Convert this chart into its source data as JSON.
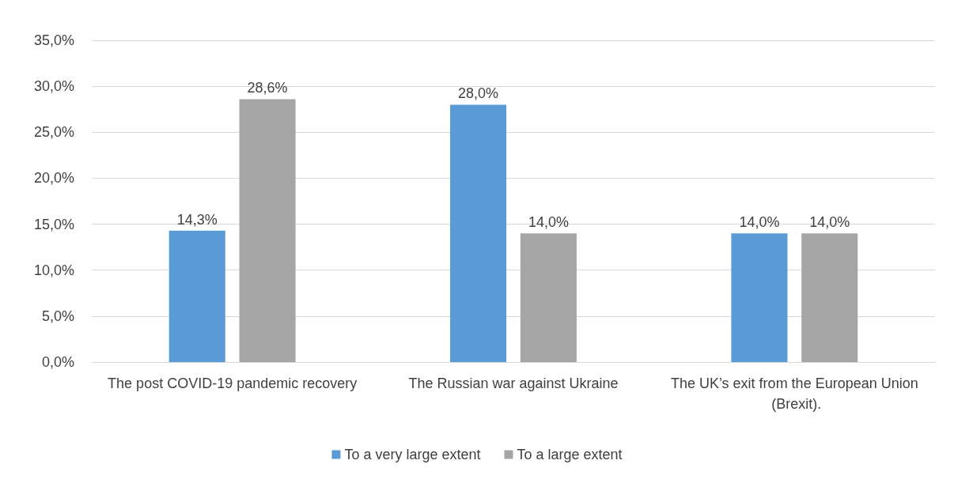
{
  "chart_data": {
    "type": "bar",
    "categories": [
      "The post COVID-19 pandemic recovery",
      "The Russian war against Ukraine",
      "The UK’s exit from the European Union (Brexit)."
    ],
    "series": [
      {
        "name": "To a very large extent",
        "color": "#5b9bd5",
        "values": [
          14.3,
          28.0,
          14.0
        ],
        "value_labels": [
          "14,3%",
          "28,0%",
          "14,0%"
        ]
      },
      {
        "name": "To a large extent",
        "color": "#a5a5a5",
        "values": [
          28.6,
          14.0,
          14.0
        ],
        "value_labels": [
          "28,6%",
          "14,0%",
          "14,0%"
        ]
      }
    ],
    "ylim": [
      0,
      35
    ],
    "yticks": [
      {
        "value": 0,
        "label": "0,0%"
      },
      {
        "value": 5,
        "label": "5,0%"
      },
      {
        "value": 10,
        "label": "10,0%"
      },
      {
        "value": 15,
        "label": "15,0%"
      },
      {
        "value": 20,
        "label": "20,0%"
      },
      {
        "value": 25,
        "label": "25,0%"
      },
      {
        "value": 30,
        "label": "30,0%"
      },
      {
        "value": 35,
        "label": "35,0%"
      }
    ],
    "grid": "y",
    "legend": "bottom"
  }
}
